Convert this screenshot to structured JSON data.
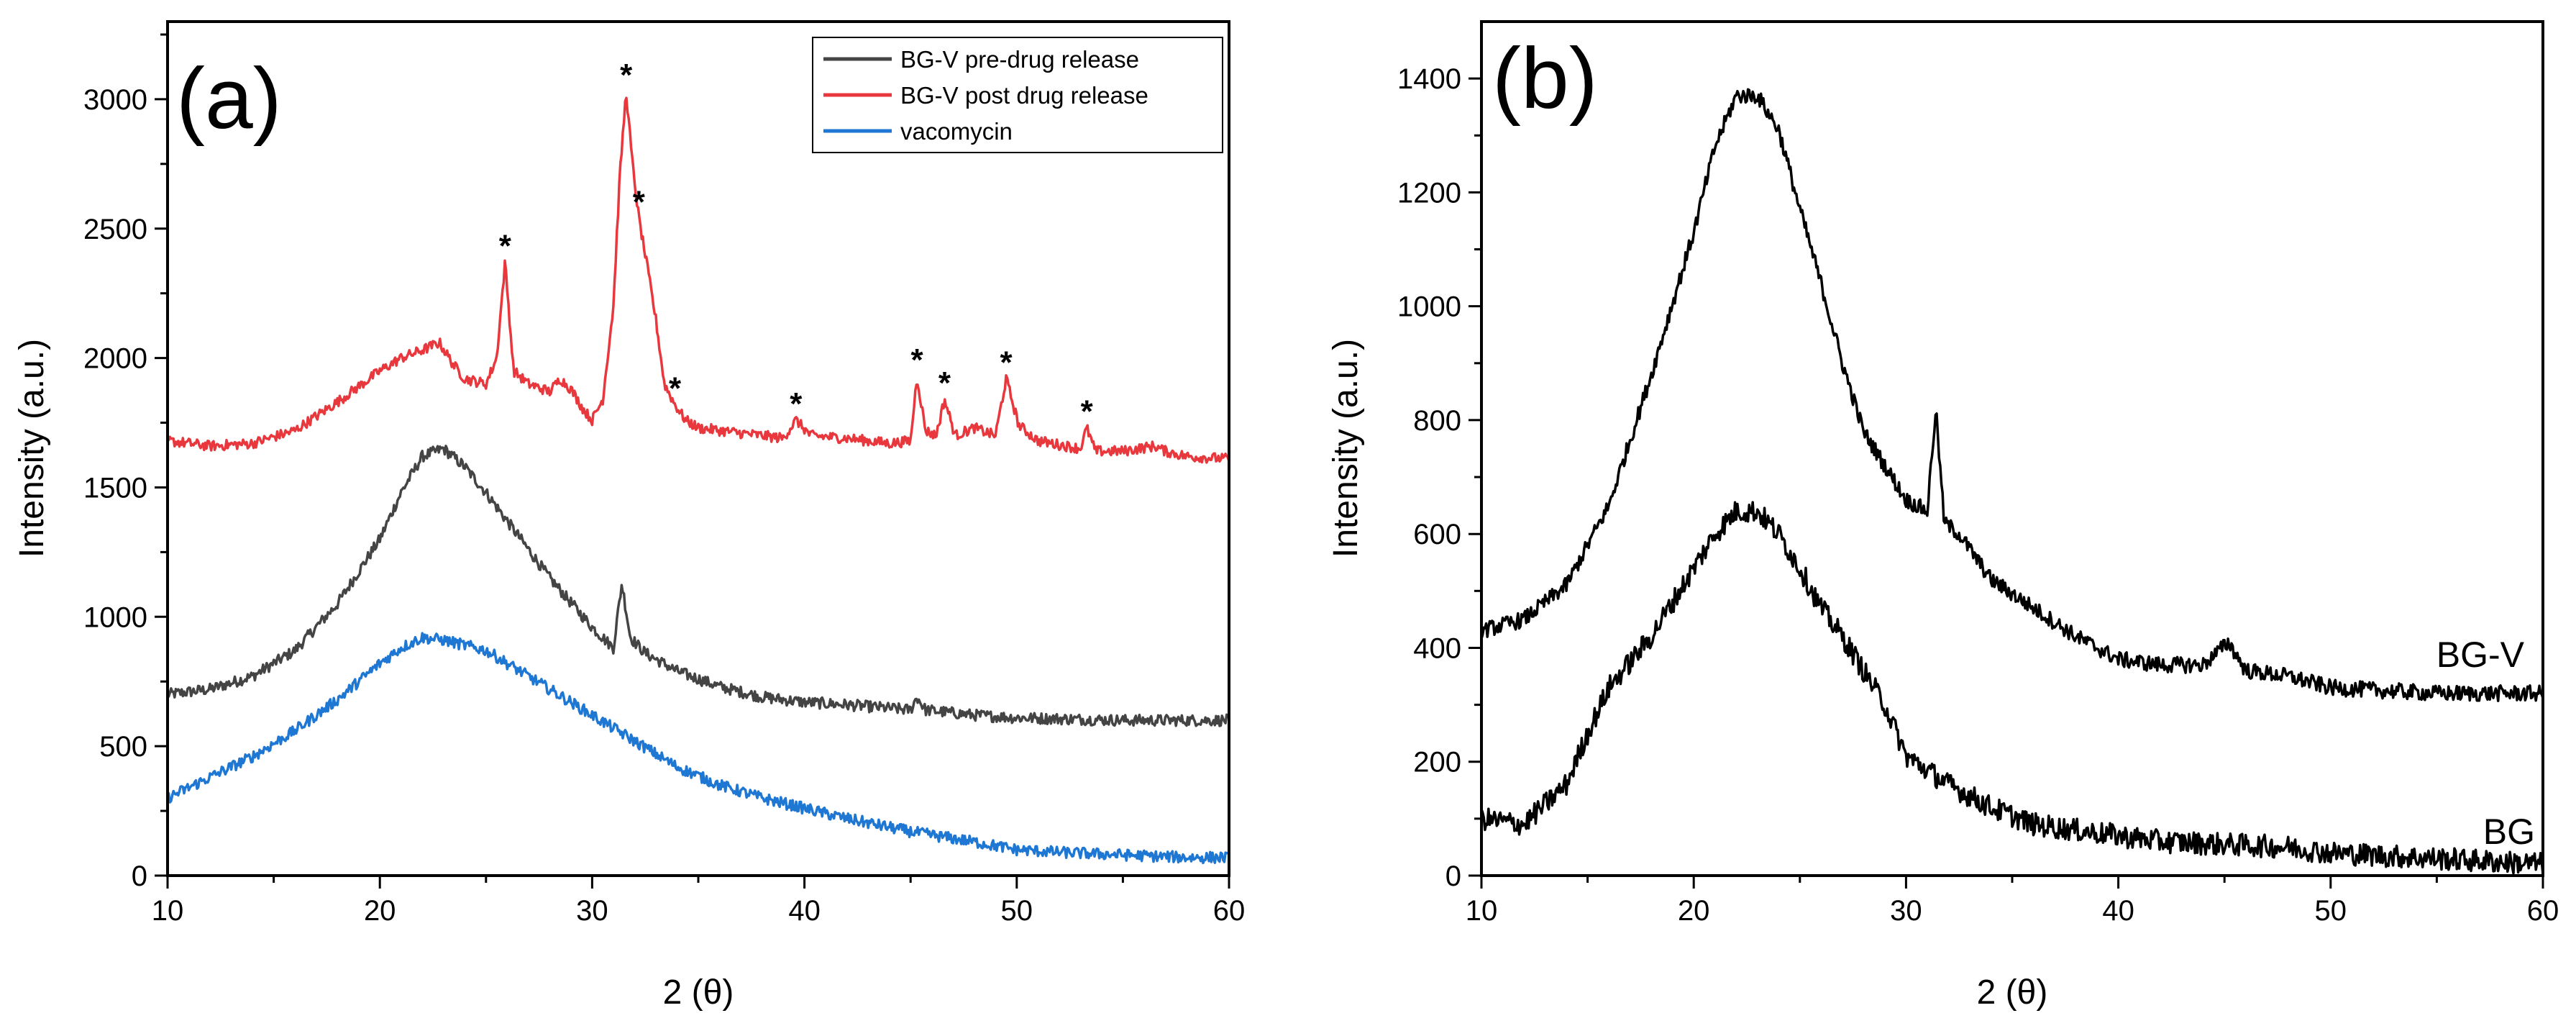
{
  "chart_data": [
    {
      "type": "line",
      "panel_label": "(a)",
      "xlabel": "2 (θ)",
      "ylabel": "Intensity (a.u.)",
      "xlim": [
        10,
        60
      ],
      "ylim": [
        0,
        3300
      ],
      "xticks": [
        10,
        20,
        30,
        40,
        50,
        60
      ],
      "yticks": [
        0,
        500,
        1000,
        1500,
        2000,
        2500,
        3000
      ],
      "grid": false,
      "legend_position": "top-right",
      "legend": [
        "BG-V pre-drug release",
        "BG-V post drug release",
        "vacomycin"
      ],
      "annotations": [
        "*",
        "*",
        "*",
        "*",
        "*",
        "*",
        "*",
        "*",
        "*"
      ],
      "annotation_positions": [
        {
          "x": 25.9,
          "y": 2370
        },
        {
          "x": 31.6,
          "y": 3030
        },
        {
          "x": 32.2,
          "y": 2540
        },
        {
          "x": 33.9,
          "y": 1820
        },
        {
          "x": 39.6,
          "y": 1760
        },
        {
          "x": 45.3,
          "y": 1930
        },
        {
          "x": 46.6,
          "y": 1840
        },
        {
          "x": 49.5,
          "y": 1920
        },
        {
          "x": 53.3,
          "y": 1730
        }
      ],
      "series": [
        {
          "name": "BG-V pre-drug release",
          "color": "#444444",
          "noise": 22,
          "x": [
            10,
            12,
            14,
            16,
            18,
            20,
            21,
            22,
            23,
            24,
            25,
            26,
            28,
            30,
            31,
            31.4,
            31.8,
            32.5,
            34,
            36,
            38,
            40,
            42,
            45,
            45.3,
            45.7,
            48,
            50,
            55,
            60
          ],
          "y": [
            700,
            720,
            770,
            870,
            1050,
            1300,
            1480,
            1620,
            1650,
            1580,
            1480,
            1370,
            1150,
            960,
            880,
            1130,
            920,
            860,
            790,
            730,
            690,
            670,
            660,
            640,
            690,
            640,
            620,
            610,
            600,
            600
          ]
        },
        {
          "name": "BG-V post drug release",
          "color": "#e8383d",
          "noise": 20,
          "x": [
            10,
            12,
            14,
            16,
            18,
            20,
            21,
            22,
            22.8,
            23.5,
            24,
            25,
            25.5,
            25.9,
            26.3,
            27,
            28,
            28.5,
            29,
            29.6,
            30,
            30.5,
            31,
            31.3,
            31.6,
            31.9,
            32.2,
            32.6,
            33,
            33.4,
            33.9,
            34.4,
            35,
            37,
            39,
            39.6,
            40.3,
            42,
            44,
            45,
            45.3,
            45.7,
            46.2,
            46.6,
            47.1,
            48,
            49,
            49.5,
            50.1,
            51,
            53,
            53.3,
            53.7,
            55,
            56.5,
            57,
            58,
            60
          ],
          "y": [
            1680,
            1660,
            1670,
            1720,
            1830,
            1950,
            2000,
            2030,
            2060,
            1970,
            1920,
            1900,
            2000,
            2370,
            1950,
            1900,
            1870,
            1920,
            1880,
            1800,
            1760,
            1840,
            2200,
            2700,
            3030,
            2750,
            2540,
            2350,
            2150,
            1900,
            1820,
            1760,
            1730,
            1710,
            1690,
            1760,
            1700,
            1690,
            1670,
            1680,
            1930,
            1720,
            1700,
            1840,
            1700,
            1730,
            1700,
            1920,
            1740,
            1680,
            1650,
            1730,
            1640,
            1640,
            1660,
            1640,
            1620,
            1610
          ]
        },
        {
          "name": "vacomycin",
          "color": "#1f77d4",
          "noise": 22,
          "x": [
            10,
            12,
            14,
            16,
            18,
            20,
            21,
            22,
            23,
            24,
            25,
            26,
            28,
            30,
            32,
            34,
            36,
            38,
            40,
            42,
            45,
            48,
            50,
            52,
            55,
            58,
            60
          ],
          "y": [
            300,
            380,
            460,
            560,
            680,
            820,
            880,
            920,
            910,
            890,
            870,
            820,
            720,
            620,
            520,
            420,
            350,
            300,
            260,
            220,
            170,
            130,
            100,
            90,
            80,
            70,
            70
          ]
        }
      ]
    },
    {
      "type": "line",
      "panel_label": "(b)",
      "xlabel": "2 (θ)",
      "ylabel": "Intensity (a.u.)",
      "xlim": [
        10,
        60
      ],
      "ylim": [
        0,
        1500
      ],
      "xticks": [
        10,
        20,
        30,
        40,
        50,
        60
      ],
      "yticks": [
        0,
        200,
        400,
        600,
        800,
        1000,
        1200,
        1400
      ],
      "grid": false,
      "series": [
        {
          "name": "BG-V",
          "color": "#000000",
          "noise": 14,
          "x": [
            10,
            12,
            14,
            16,
            18,
            20,
            21,
            22,
            23,
            24,
            25,
            26,
            27,
            28,
            29,
            30,
            31,
            31.4,
            31.8,
            32.5,
            34,
            36,
            38,
            40,
            42,
            44,
            45.2,
            46,
            48,
            50,
            55,
            60
          ],
          "y": [
            430,
            450,
            510,
            650,
            880,
            1130,
            1280,
            1370,
            1370,
            1310,
            1170,
            1040,
            900,
            780,
            720,
            660,
            640,
            820,
            620,
            600,
            520,
            470,
            420,
            380,
            370,
            370,
            410,
            360,
            350,
            330,
            320,
            320
          ]
        },
        {
          "name": "BG",
          "color": "#000000",
          "noise": 20,
          "x": [
            10,
            12,
            14,
            15,
            16,
            18,
            20,
            21,
            22,
            23,
            24,
            25,
            26,
            27,
            28,
            29,
            30,
            32,
            34,
            36,
            38,
            40,
            42,
            45,
            48,
            50,
            55,
            60
          ],
          "y": [
            100,
            90,
            160,
            250,
            330,
            420,
            540,
            600,
            640,
            640,
            600,
            540,
            470,
            420,
            360,
            300,
            210,
            160,
            120,
            90,
            80,
            70,
            60,
            55,
            50,
            40,
            30,
            20
          ]
        }
      ],
      "series_labels": [
        "BG-V",
        "BG"
      ]
    }
  ]
}
